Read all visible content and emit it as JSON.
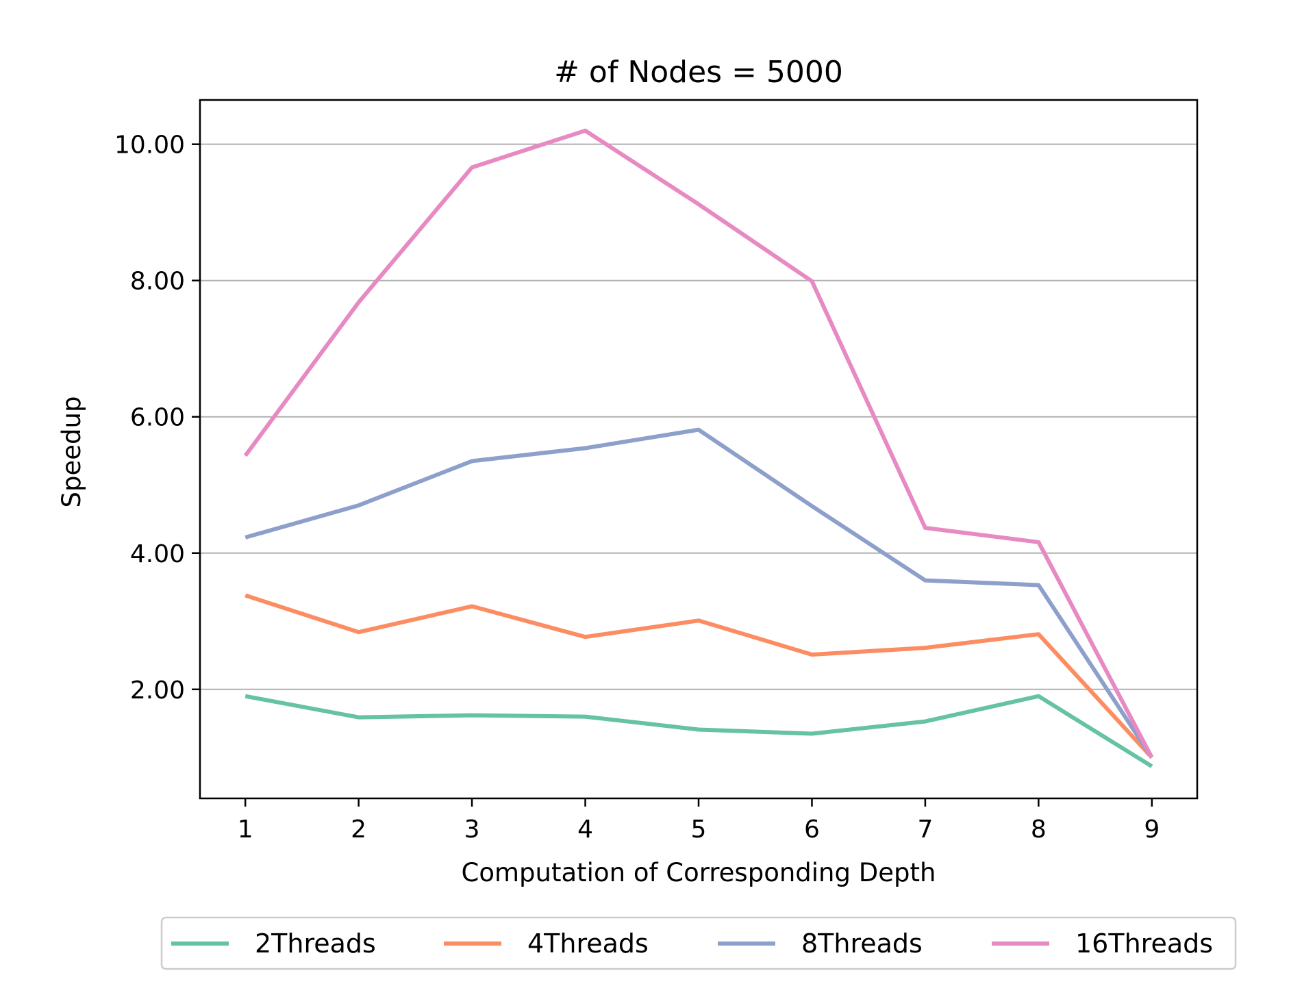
{
  "chart_data": {
    "type": "line",
    "title": "# of Nodes = 5000",
    "xlabel": "Computation of Corresponding Depth",
    "ylabel": "Speedup",
    "x": [
      1,
      2,
      3,
      4,
      5,
      6,
      7,
      8,
      9
    ],
    "x_tick_labels": [
      "1",
      "2",
      "3",
      "4",
      "5",
      "6",
      "7",
      "8",
      "9"
    ],
    "xlim": [
      0.6,
      9.4
    ],
    "ylim": [
      0.4,
      10.65
    ],
    "y_ticks": [
      2,
      4,
      6,
      8,
      10
    ],
    "y_tick_labels": [
      "2.00",
      "4.00",
      "6.00",
      "8.00",
      "10.00"
    ],
    "grid": "horizontal",
    "legend_position": "bottom-center",
    "series": [
      {
        "name": "2Threads",
        "color": "#66c2a5",
        "values": [
          1.9,
          1.59,
          1.62,
          1.6,
          1.41,
          1.35,
          1.53,
          1.9,
          0.87
        ]
      },
      {
        "name": "4Threads",
        "color": "#fc8d62",
        "values": [
          3.38,
          2.84,
          3.22,
          2.77,
          3.01,
          2.51,
          2.61,
          2.81,
          1.0
        ]
      },
      {
        "name": "8Threads",
        "color": "#8da0cb",
        "values": [
          4.23,
          4.7,
          5.35,
          5.54,
          5.81,
          4.69,
          3.6,
          3.53,
          1.0
        ]
      },
      {
        "name": "16Threads",
        "color": "#e78ac3",
        "values": [
          5.43,
          7.68,
          9.66,
          10.2,
          9.12,
          7.99,
          4.37,
          4.16,
          1.0
        ]
      }
    ]
  }
}
